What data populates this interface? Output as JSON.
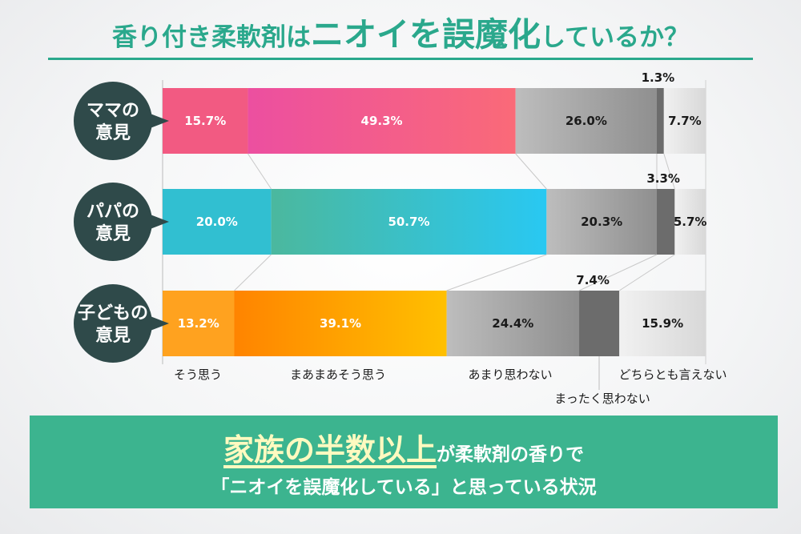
{
  "title": {
    "part1": "香り付き柔軟剤は",
    "part2": "ニオイを誤魔化",
    "part3": "しているか？"
  },
  "chart_data": {
    "type": "bar",
    "stacked": true,
    "orientation": "horizontal",
    "unit": "%",
    "categories": [
      "ママの\n意見",
      "パパの\n意見",
      "子どもの\n意見"
    ],
    "legend_position": "bottom",
    "series": [
      {
        "name": "そう思う",
        "values": [
          15.7,
          20.0,
          13.2
        ]
      },
      {
        "name": "まあまあそう思う",
        "values": [
          49.3,
          50.7,
          39.1
        ]
      },
      {
        "name": "あまり思わない",
        "values": [
          26.0,
          20.3,
          24.4
        ]
      },
      {
        "name": "まったく思わない",
        "values": [
          1.3,
          3.3,
          7.4
        ]
      },
      {
        "name": "どちらとも言えない",
        "values": [
          7.7,
          5.7,
          15.9
        ]
      }
    ],
    "value_labels": [
      [
        "15.7%",
        "49.3%",
        "26.0%",
        "1.3%",
        "7.7%"
      ],
      [
        "20.0%",
        "50.7%",
        "20.3%",
        "3.3%",
        "5.7%"
      ],
      [
        "13.2%",
        "39.1%",
        "24.4%",
        "7.4%",
        "15.9%"
      ]
    ],
    "xlim": [
      0,
      100
    ],
    "row_colors": [
      [
        "#f25a82",
        "#ef5f9c",
        "#a8a8a8",
        "#6c6c6c",
        "#e4e4e4"
      ],
      [
        "#31bfd1",
        "#4cbf95",
        "#a8a8a8",
        "#6c6c6c",
        "#e4e4e4"
      ],
      [
        "#ffa21f",
        "#ff8c00",
        "#a8a8a8",
        "#6c6c6c",
        "#e4e4e4"
      ]
    ],
    "label_circle_color": "#2f4a4a",
    "label_text_color": "#ffffff"
  },
  "summary": {
    "highlight": "家族の半数以上",
    "rest1": "が柔軟剤の香りで",
    "line2": "「ニオイを誤魔化している」と思っている状況"
  },
  "colors": {
    "accent": "#2aa88c",
    "banner": "#3cb48f",
    "highlight_text": "#fffac0"
  }
}
